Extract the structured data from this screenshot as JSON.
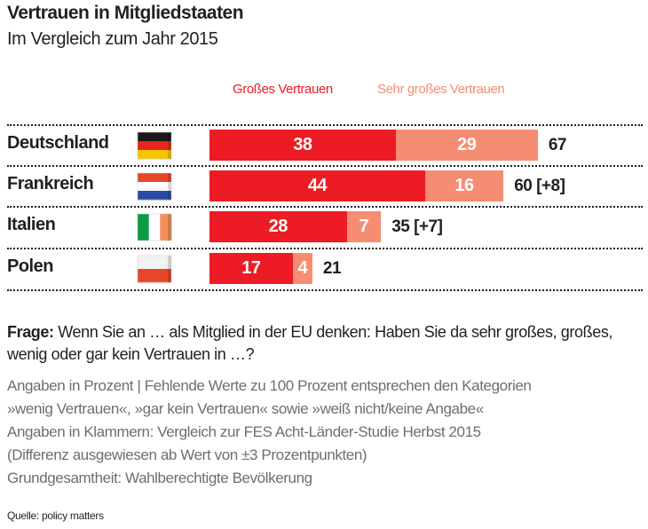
{
  "colors": {
    "grosses": "#ed1c24",
    "sehr_grosses": "#f58d72",
    "text": "#231f20",
    "notes": "#6d6e71"
  },
  "chart_data": {
    "type": "bar",
    "stacked": true,
    "orientation": "horizontal",
    "title": "Vertrauen in Mitgliedstaaten",
    "subtitle": "Im Vergleich zum Jahr 2015",
    "legend_placement": "top",
    "categories": [
      "Deutschland",
      "Frankreich",
      "Italien",
      "Polen"
    ],
    "flags": [
      "germany-flag",
      "france-flag",
      "italy-flag",
      "poland-flag"
    ],
    "series": [
      {
        "name": "Großes Vertrauen",
        "values": [
          38,
          44,
          28,
          17
        ]
      },
      {
        "name": "Sehr großes Vertrauen",
        "values": [
          29,
          16,
          7,
          4
        ]
      }
    ],
    "totals": [
      "67",
      "60 [+8]",
      "35 [+7]",
      "21"
    ]
  },
  "footer": {
    "question_label": "Frage:",
    "question_text": " Wenn Sie an … als Mitglied in der EU denken:  Haben Sie da sehr großes, großes, wenig oder gar kein Vertrauen in …?",
    "notes": [
      "Angaben in Prozent | Fehlende Werte zu 100 Prozent entsprechen den Kategorien",
      "»wenig Vertrauen«, »gar kein Vertrauen« sowie »weiß nicht/keine Angabe«",
      "Angaben in Klammern: Vergleich zur FES Acht-Länder-Studie Herbst 2015",
      "(Differenz ausgewiesen ab Wert von ±3 Prozentpunkten)",
      "Grundgesamtheit: Wahlberechtigte Bevölkerung"
    ],
    "source": "Quelle: policy matters"
  }
}
